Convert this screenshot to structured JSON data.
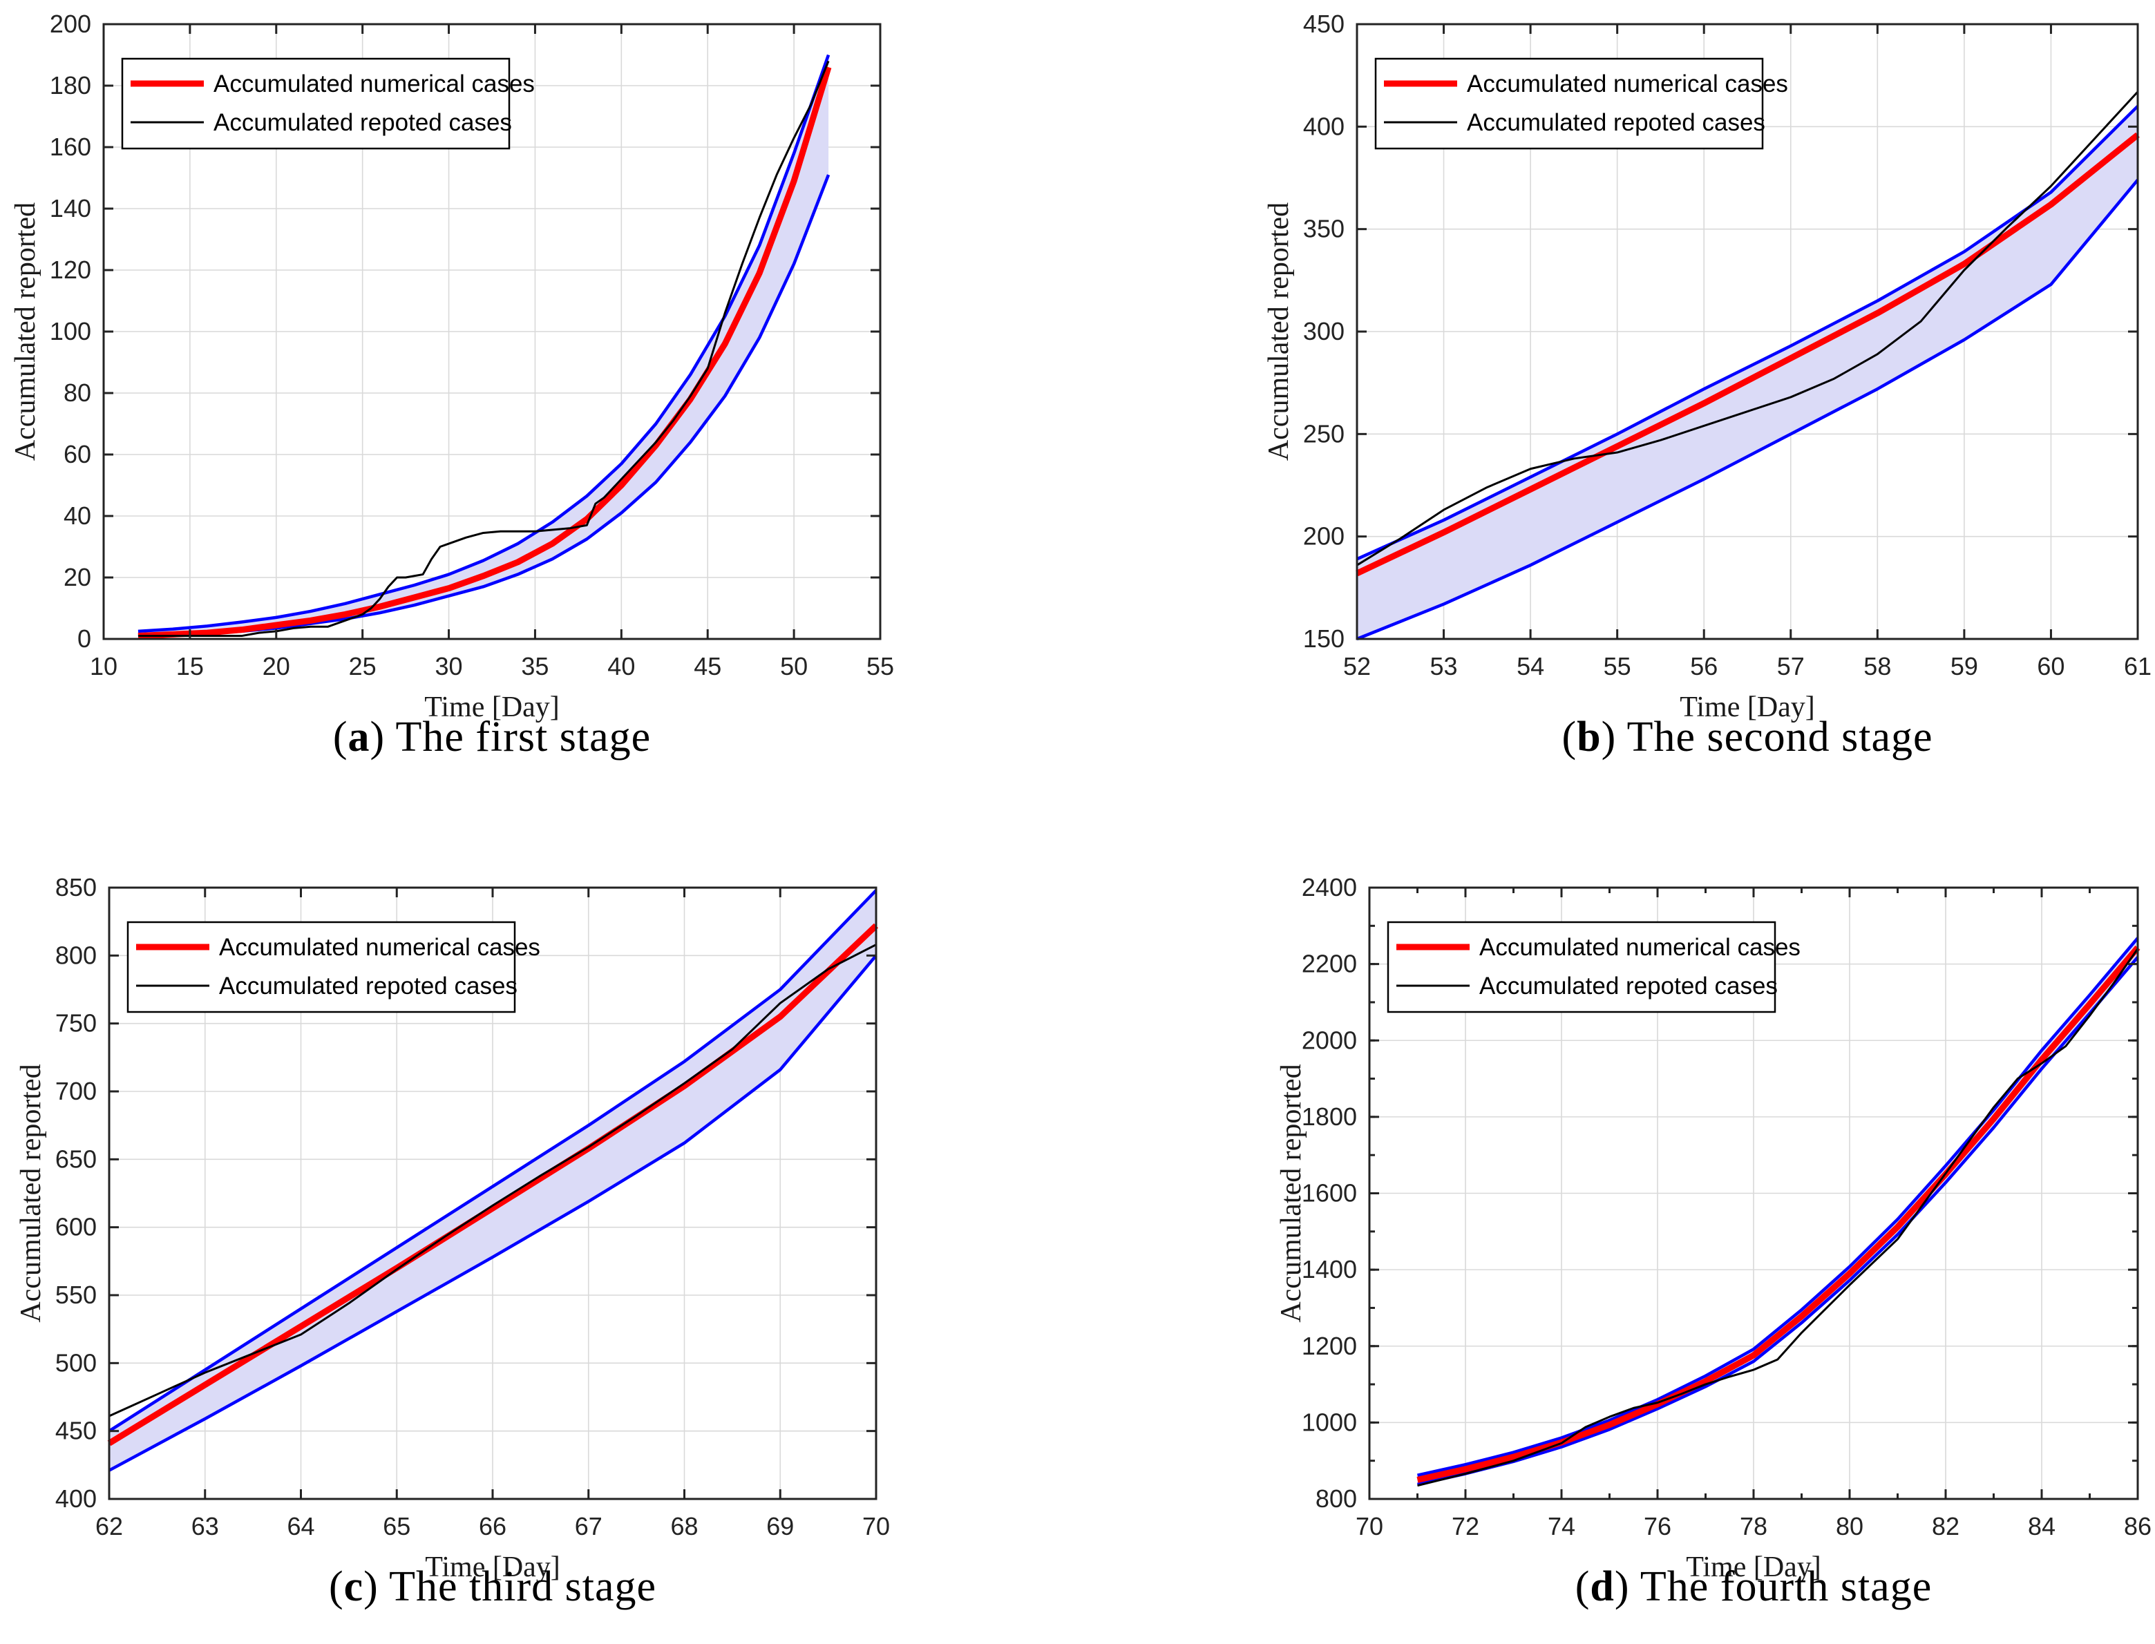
{
  "figure_background": "#ffffff",
  "punct": {
    "open": "(",
    "close": ") "
  },
  "style": {
    "numerical_color": "#ff0000",
    "reported_color": "#000000",
    "band_edge_color": "#0000ff",
    "band_fill_color": "#dbdbf7",
    "grid_color": "#d9d9d9",
    "axis_color": "#232323",
    "legend_border_color": "#000000"
  },
  "chart_data": [
    {
      "type": "line",
      "caption": {
        "letter": "a",
        "text": "The first stage"
      },
      "xlabel": "Time [Day]",
      "ylabel": "Accumulated reported",
      "xlim": [
        10,
        55
      ],
      "ylim": [
        0,
        200
      ],
      "xticks": [
        10,
        15,
        20,
        25,
        30,
        35,
        40,
        45,
        50,
        55
      ],
      "yticks": [
        0,
        20,
        40,
        60,
        80,
        100,
        120,
        140,
        160,
        180,
        200
      ],
      "minor": null,
      "grid": true,
      "legend_position": "top-left",
      "legend": [
        "Accumulated numerical cases",
        "Accumulated repoted cases"
      ],
      "band": {
        "x": [
          12,
          14,
          16,
          18,
          20,
          22,
          24,
          26,
          28,
          30,
          32,
          34,
          36,
          38,
          40,
          42,
          44,
          46,
          48,
          50,
          52
        ],
        "upper": [
          2.5,
          3.2,
          4.2,
          5.5,
          7,
          9,
          11.5,
          14.5,
          17.5,
          21,
          25.5,
          31,
          38,
          46.5,
          57,
          70,
          86,
          105,
          128,
          158,
          190
        ],
        "lower": [
          0.8,
          1.2,
          1.8,
          2.5,
          3.5,
          5,
          6.5,
          8.5,
          11,
          14,
          17,
          21,
          26,
          32.5,
          41,
          51,
          64,
          79,
          98,
          122,
          151
        ]
      },
      "series": [
        {
          "name": "Accumulated numerical cases",
          "x": [
            12,
            14,
            16,
            18,
            20,
            22,
            24,
            26,
            28,
            30,
            32,
            34,
            36,
            38,
            40,
            42,
            44,
            46,
            48,
            50,
            52
          ],
          "y": [
            1,
            1.5,
            2,
            3,
            4.5,
            6,
            8,
            10.5,
            13.5,
            16.5,
            20.5,
            25,
            31,
            39,
            50,
            63,
            78,
            96,
            119,
            149,
            186
          ]
        },
        {
          "name": "Accumulated repoted cases",
          "x": [
            12,
            13,
            14,
            15,
            16,
            17,
            18,
            19,
            20,
            21,
            22,
            23,
            24,
            25,
            25.5,
            26,
            26.5,
            27,
            27.5,
            28,
            28.5,
            29,
            29.5,
            30,
            31,
            32,
            33,
            34,
            35,
            36,
            37,
            38,
            38.5,
            39,
            40,
            41,
            42,
            43,
            44,
            45,
            46,
            47,
            48,
            49,
            50,
            51,
            52
          ],
          "y": [
            1,
            1,
            1,
            1,
            1,
            1,
            1,
            2,
            2.5,
            3.5,
            4,
            4,
            6,
            8,
            10,
            13,
            17,
            20,
            20,
            20.5,
            21,
            26,
            30,
            31,
            33,
            34.5,
            35,
            35,
            35,
            35.5,
            36,
            37,
            44,
            46,
            52,
            58,
            64,
            71,
            79,
            88,
            106,
            122,
            137,
            151,
            163,
            174,
            188
          ]
        }
      ]
    },
    {
      "type": "line",
      "caption": {
        "letter": "b",
        "text": "The second stage"
      },
      "xlabel": "Time [Day]",
      "ylabel": "Accumulated reported",
      "xlim": [
        52,
        61
      ],
      "ylim": [
        150,
        450
      ],
      "xticks": [
        52,
        53,
        54,
        55,
        56,
        57,
        58,
        59,
        60,
        61
      ],
      "yticks": [
        150,
        200,
        250,
        300,
        350,
        400,
        450
      ],
      "minor": null,
      "grid": true,
      "legend_position": "top-left",
      "legend": [
        "Accumulated numerical cases",
        "Accumulated repoted cases"
      ],
      "band": {
        "x": [
          52,
          53,
          54,
          55,
          56,
          57,
          58,
          59,
          60,
          61
        ],
        "upper": [
          189,
          208,
          229,
          250,
          272,
          293,
          315,
          339,
          368,
          410
        ],
        "lower": [
          150,
          167,
          186,
          207,
          228,
          250,
          272,
          296,
          323,
          374
        ]
      },
      "series": [
        {
          "name": "Accumulated numerical cases",
          "x": [
            52,
            53,
            54,
            55,
            56,
            57,
            58,
            59,
            60,
            61
          ],
          "y": [
            182,
            202,
            223,
            244,
            265,
            287,
            309,
            333,
            362,
            396
          ]
        },
        {
          "name": "Accumulated repoted cases",
          "x": [
            52,
            52.5,
            53,
            53.5,
            54,
            54.5,
            55,
            55.5,
            56,
            56.5,
            57,
            57.5,
            58,
            58.5,
            59,
            59.5,
            60,
            60.5,
            61
          ],
          "y": [
            186,
            199,
            213,
            224,
            233,
            238,
            241,
            247,
            254,
            261,
            268,
            277,
            289,
            305,
            330,
            351,
            371,
            394,
            417
          ]
        }
      ]
    },
    {
      "type": "line",
      "caption": {
        "letter": "c",
        "text": "The third stage"
      },
      "xlabel": "Time [Day]",
      "ylabel": "Accumulated reported",
      "xlim": [
        62,
        70
      ],
      "ylim": [
        400,
        850
      ],
      "xticks": [
        62,
        63,
        64,
        65,
        66,
        67,
        68,
        69,
        70
      ],
      "yticks": [
        400,
        450,
        500,
        550,
        600,
        650,
        700,
        750,
        800,
        850
      ],
      "minor": null,
      "grid": true,
      "legend_position": "top-left",
      "legend": [
        "Accumulated numerical cases",
        "Accumulated repoted cases"
      ],
      "band": {
        "x": [
          62,
          63,
          64,
          65,
          66,
          67,
          68,
          69,
          70
        ],
        "upper": [
          450,
          495,
          540,
          585,
          630,
          675,
          722,
          775,
          848
        ],
        "lower": [
          421,
          459,
          498,
          538,
          578,
          619,
          662,
          716,
          800
        ]
      },
      "series": [
        {
          "name": "Accumulated numerical cases",
          "x": [
            62,
            63,
            64,
            65,
            66,
            67,
            68,
            69,
            70
          ],
          "y": [
            441,
            484,
            527,
            570,
            614,
            658,
            704,
            755,
            822
          ]
        },
        {
          "name": "Accumulated repoted cases",
          "x": [
            62,
            62.5,
            63,
            63.5,
            64,
            64.5,
            65,
            65.5,
            66,
            66.5,
            67,
            67.5,
            68,
            68.5,
            69,
            69.5,
            70
          ],
          "y": [
            461,
            477,
            493,
            507,
            521,
            544,
            569,
            593,
            616,
            638,
            659,
            682,
            706,
            731,
            765,
            790,
            808
          ]
        }
      ]
    },
    {
      "type": "line",
      "caption": {
        "letter": "d",
        "text": "The fourth stage"
      },
      "xlabel": "Time [Day]",
      "ylabel": "Accumulated reported",
      "xlim": [
        70,
        86
      ],
      "ylim": [
        800,
        2400
      ],
      "xticks": [
        70,
        72,
        74,
        76,
        78,
        80,
        82,
        84,
        86
      ],
      "yticks": [
        800,
        1000,
        1200,
        1400,
        1600,
        1800,
        2000,
        2200,
        2400
      ],
      "minor": {
        "x": 1,
        "y": 100
      },
      "grid": true,
      "legend_position": "top-left",
      "legend": [
        "Accumulated numerical cases",
        "Accumulated repoted cases"
      ],
      "band": {
        "x": [
          71,
          72,
          73,
          74,
          75,
          76,
          77,
          78,
          79,
          80,
          81,
          82,
          83,
          84,
          85,
          86
        ],
        "upper": [
          862,
          890,
          922,
          960,
          1006,
          1060,
          1122,
          1192,
          1295,
          1408,
          1532,
          1672,
          1818,
          1974,
          2119,
          2268
        ],
        "lower": [
          838,
          866,
          898,
          936,
          982,
          1036,
          1094,
          1160,
          1261,
          1372,
          1492,
          1628,
          1772,
          1926,
          2071,
          2218
        ]
      },
      "series": [
        {
          "name": "Accumulated numerical cases",
          "x": [
            71,
            72,
            73,
            74,
            75,
            76,
            77,
            78,
            79,
            80,
            81,
            82,
            83,
            84,
            85,
            86
          ],
          "y": [
            850,
            878,
            910,
            948,
            994,
            1048,
            1108,
            1176,
            1278,
            1390,
            1512,
            1650,
            1795,
            1950,
            2095,
            2243
          ]
        },
        {
          "name": "Accumulated repoted cases",
          "x": [
            71,
            72,
            73,
            74,
            74.5,
            75,
            75.5,
            76,
            76.5,
            77,
            77.5,
            78,
            78.5,
            79,
            80,
            81,
            82,
            83,
            83.5,
            84,
            84.5,
            85,
            85.5,
            86
          ],
          "y": [
            835,
            866,
            900,
            946,
            988,
            1015,
            1038,
            1052,
            1075,
            1100,
            1120,
            1138,
            1165,
            1235,
            1360,
            1480,
            1652,
            1825,
            1900,
            1940,
            1985,
            2065,
            2150,
            2240
          ]
        }
      ]
    }
  ]
}
